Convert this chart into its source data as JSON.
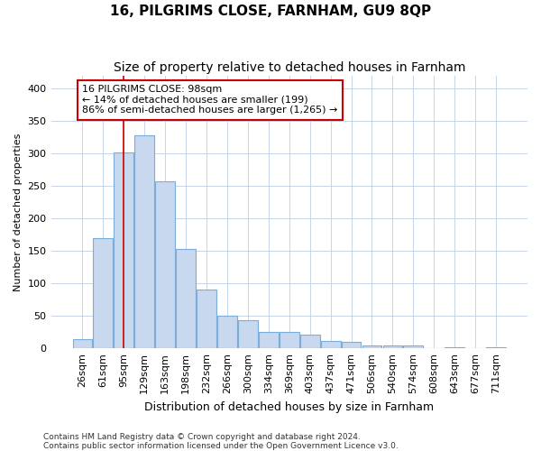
{
  "title": "16, PILGRIMS CLOSE, FARNHAM, GU9 8QP",
  "subtitle": "Size of property relative to detached houses in Farnham",
  "xlabel": "Distribution of detached houses by size in Farnham",
  "ylabel": "Number of detached properties",
  "categories": [
    "26sqm",
    "61sqm",
    "95sqm",
    "129sqm",
    "163sqm",
    "198sqm",
    "232sqm",
    "266sqm",
    "300sqm",
    "334sqm",
    "369sqm",
    "403sqm",
    "437sqm",
    "471sqm",
    "506sqm",
    "540sqm",
    "574sqm",
    "608sqm",
    "643sqm",
    "677sqm",
    "711sqm"
  ],
  "values": [
    14,
    170,
    302,
    328,
    258,
    153,
    91,
    50,
    43,
    26,
    26,
    21,
    12,
    10,
    4,
    4,
    5,
    1,
    2,
    1,
    2
  ],
  "bar_color": "#c8d8ee",
  "bar_edge_color": "#7aacdc",
  "vline_x": 2,
  "vline_color": "#cc0000",
  "annotation_text": "16 PILGRIMS CLOSE: 98sqm\n← 14% of detached houses are smaller (199)\n86% of semi-detached houses are larger (1,265) →",
  "annotation_box_facecolor": "#ffffff",
  "annotation_box_edgecolor": "#cc0000",
  "grid_color": "#c8d4e8",
  "background_color": "#ffffff",
  "footer_line1": "Contains HM Land Registry data © Crown copyright and database right 2024.",
  "footer_line2": "Contains public sector information licensed under the Open Government Licence v3.0.",
  "ylim": [
    0,
    420
  ],
  "yticks": [
    0,
    50,
    100,
    150,
    200,
    250,
    300,
    350,
    400
  ],
  "title_fontsize": 11,
  "subtitle_fontsize": 10,
  "xlabel_fontsize": 9,
  "ylabel_fontsize": 8,
  "tick_fontsize": 8,
  "annotation_fontsize": 8,
  "footer_fontsize": 6.5
}
